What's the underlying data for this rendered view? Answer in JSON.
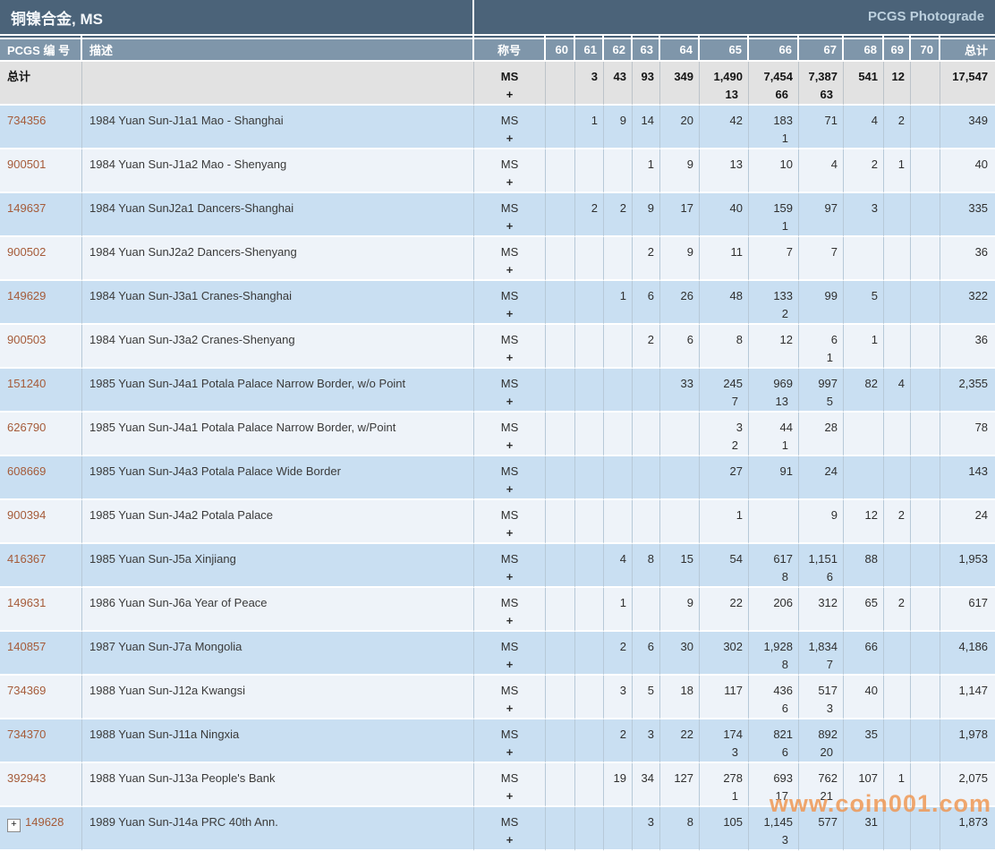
{
  "title_bar": {
    "title": "铜镍合金, MS",
    "photograde_link": "PCGS Photograde"
  },
  "table": {
    "headers": {
      "pcgs_no": "PCGS 编 号",
      "description": "描述",
      "designation": "称号",
      "grades": [
        "60",
        "61",
        "62",
        "63",
        "64",
        "65",
        "66",
        "67",
        "68",
        "69",
        "70"
      ],
      "total": "总计"
    },
    "designation": {
      "top": "MS",
      "bottom": "+"
    },
    "totals_row": {
      "label": "总计",
      "grades": [
        [
          "",
          ""
        ],
        [
          "3",
          ""
        ],
        [
          "43",
          ""
        ],
        [
          "93",
          ""
        ],
        [
          "349",
          ""
        ],
        [
          "1,490",
          "13"
        ],
        [
          "7,454",
          "66"
        ],
        [
          "7,387",
          "63"
        ],
        [
          "541",
          ""
        ],
        [
          "12",
          ""
        ],
        [
          "",
          ""
        ]
      ],
      "total": "17,547"
    },
    "rows": [
      {
        "pcgs_no": "734356",
        "expandable": false,
        "description": "1984 Yuan Sun-J1a1 Mao - Shanghai",
        "grades": [
          [
            "",
            ""
          ],
          [
            "1",
            ""
          ],
          [
            "9",
            ""
          ],
          [
            "14",
            ""
          ],
          [
            "20",
            ""
          ],
          [
            "42",
            ""
          ],
          [
            "183",
            "1"
          ],
          [
            "71",
            ""
          ],
          [
            "4",
            ""
          ],
          [
            "2",
            ""
          ],
          [
            "",
            ""
          ]
        ],
        "total": "349"
      },
      {
        "pcgs_no": "900501",
        "expandable": false,
        "description": "1984 Yuan Sun-J1a2 Mao - Shenyang",
        "grades": [
          [
            "",
            ""
          ],
          [
            "",
            ""
          ],
          [
            "",
            ""
          ],
          [
            "1",
            ""
          ],
          [
            "9",
            ""
          ],
          [
            "13",
            ""
          ],
          [
            "10",
            ""
          ],
          [
            "4",
            ""
          ],
          [
            "2",
            ""
          ],
          [
            "1",
            ""
          ],
          [
            "",
            ""
          ]
        ],
        "total": "40"
      },
      {
        "pcgs_no": "149637",
        "expandable": false,
        "description": "1984 Yuan SunJ2a1 Dancers-Shanghai",
        "grades": [
          [
            "",
            ""
          ],
          [
            "2",
            ""
          ],
          [
            "2",
            ""
          ],
          [
            "9",
            ""
          ],
          [
            "17",
            ""
          ],
          [
            "40",
            ""
          ],
          [
            "159",
            "1"
          ],
          [
            "97",
            ""
          ],
          [
            "3",
            ""
          ],
          [
            "",
            ""
          ],
          [
            "",
            ""
          ]
        ],
        "total": "335"
      },
      {
        "pcgs_no": "900502",
        "expandable": false,
        "description": "1984 Yuan SunJ2a2 Dancers-Shenyang",
        "grades": [
          [
            "",
            ""
          ],
          [
            "",
            ""
          ],
          [
            "",
            ""
          ],
          [
            "2",
            ""
          ],
          [
            "9",
            ""
          ],
          [
            "11",
            ""
          ],
          [
            "7",
            ""
          ],
          [
            "7",
            ""
          ],
          [
            "",
            ""
          ],
          [
            "",
            ""
          ],
          [
            "",
            ""
          ]
        ],
        "total": "36"
      },
      {
        "pcgs_no": "149629",
        "expandable": false,
        "description": "1984 Yuan Sun-J3a1 Cranes-Shanghai",
        "grades": [
          [
            "",
            ""
          ],
          [
            "",
            ""
          ],
          [
            "1",
            ""
          ],
          [
            "6",
            ""
          ],
          [
            "26",
            ""
          ],
          [
            "48",
            ""
          ],
          [
            "133",
            "2"
          ],
          [
            "99",
            ""
          ],
          [
            "5",
            ""
          ],
          [
            "",
            ""
          ],
          [
            "",
            ""
          ]
        ],
        "total": "322"
      },
      {
        "pcgs_no": "900503",
        "expandable": false,
        "description": "1984 Yuan Sun-J3a2 Cranes-Shenyang",
        "grades": [
          [
            "",
            ""
          ],
          [
            "",
            ""
          ],
          [
            "",
            ""
          ],
          [
            "2",
            ""
          ],
          [
            "6",
            ""
          ],
          [
            "8",
            ""
          ],
          [
            "12",
            ""
          ],
          [
            "6",
            "1"
          ],
          [
            "1",
            ""
          ],
          [
            "",
            ""
          ],
          [
            "",
            ""
          ]
        ],
        "total": "36"
      },
      {
        "pcgs_no": "151240",
        "expandable": false,
        "description": "1985 Yuan Sun-J4a1 Potala Palace Narrow Border, w/o Point",
        "grades": [
          [
            "",
            ""
          ],
          [
            "",
            ""
          ],
          [
            "",
            ""
          ],
          [
            "",
            ""
          ],
          [
            "33",
            ""
          ],
          [
            "245",
            "7"
          ],
          [
            "969",
            "13"
          ],
          [
            "997",
            "5"
          ],
          [
            "82",
            ""
          ],
          [
            "4",
            ""
          ],
          [
            "",
            ""
          ]
        ],
        "total": "2,355"
      },
      {
        "pcgs_no": "626790",
        "expandable": false,
        "description": "1985 Yuan Sun-J4a1 Potala Palace Narrow Border, w/Point",
        "grades": [
          [
            "",
            ""
          ],
          [
            "",
            ""
          ],
          [
            "",
            ""
          ],
          [
            "",
            ""
          ],
          [
            "",
            ""
          ],
          [
            "3",
            "2"
          ],
          [
            "44",
            "1"
          ],
          [
            "28",
            ""
          ],
          [
            "",
            ""
          ],
          [
            "",
            ""
          ],
          [
            "",
            ""
          ]
        ],
        "total": "78"
      },
      {
        "pcgs_no": "608669",
        "expandable": false,
        "description": "1985 Yuan Sun-J4a3 Potala Palace Wide Border",
        "grades": [
          [
            "",
            ""
          ],
          [
            "",
            ""
          ],
          [
            "",
            ""
          ],
          [
            "",
            ""
          ],
          [
            "",
            ""
          ],
          [
            "27",
            ""
          ],
          [
            "91",
            ""
          ],
          [
            "24",
            ""
          ],
          [
            "",
            ""
          ],
          [
            "",
            ""
          ],
          [
            "",
            ""
          ]
        ],
        "total": "143"
      },
      {
        "pcgs_no": "900394",
        "expandable": false,
        "description": "1985 Yuan Sun-J4a2 Potala Palace",
        "grades": [
          [
            "",
            ""
          ],
          [
            "",
            ""
          ],
          [
            "",
            ""
          ],
          [
            "",
            ""
          ],
          [
            "",
            ""
          ],
          [
            "1",
            ""
          ],
          [
            "",
            ""
          ],
          [
            "9",
            ""
          ],
          [
            "12",
            ""
          ],
          [
            "2",
            ""
          ],
          [
            "",
            ""
          ]
        ],
        "total": "24"
      },
      {
        "pcgs_no": "416367",
        "expandable": false,
        "description": "1985 Yuan Sun-J5a Xinjiang",
        "grades": [
          [
            "",
            ""
          ],
          [
            "",
            ""
          ],
          [
            "4",
            ""
          ],
          [
            "8",
            ""
          ],
          [
            "15",
            ""
          ],
          [
            "54",
            ""
          ],
          [
            "617",
            "8"
          ],
          [
            "1,151",
            "6"
          ],
          [
            "88",
            ""
          ],
          [
            "",
            ""
          ],
          [
            "",
            ""
          ]
        ],
        "total": "1,953"
      },
      {
        "pcgs_no": "149631",
        "expandable": false,
        "description": "1986 Yuan Sun-J6a Year of Peace",
        "grades": [
          [
            "",
            ""
          ],
          [
            "",
            ""
          ],
          [
            "1",
            ""
          ],
          [
            "",
            ""
          ],
          [
            "9",
            ""
          ],
          [
            "22",
            ""
          ],
          [
            "206",
            ""
          ],
          [
            "312",
            ""
          ],
          [
            "65",
            ""
          ],
          [
            "2",
            ""
          ],
          [
            "",
            ""
          ]
        ],
        "total": "617"
      },
      {
        "pcgs_no": "140857",
        "expandable": false,
        "description": "1987 Yuan Sun-J7a Mongolia",
        "grades": [
          [
            "",
            ""
          ],
          [
            "",
            ""
          ],
          [
            "2",
            ""
          ],
          [
            "6",
            ""
          ],
          [
            "30",
            ""
          ],
          [
            "302",
            ""
          ],
          [
            "1,928",
            "8"
          ],
          [
            "1,834",
            "7"
          ],
          [
            "66",
            ""
          ],
          [
            "",
            ""
          ],
          [
            "",
            ""
          ]
        ],
        "total": "4,186"
      },
      {
        "pcgs_no": "734369",
        "expandable": false,
        "description": "1988 Yuan Sun-J12a Kwangsi",
        "grades": [
          [
            "",
            ""
          ],
          [
            "",
            ""
          ],
          [
            "3",
            ""
          ],
          [
            "5",
            ""
          ],
          [
            "18",
            ""
          ],
          [
            "117",
            ""
          ],
          [
            "436",
            "6"
          ],
          [
            "517",
            "3"
          ],
          [
            "40",
            ""
          ],
          [
            "",
            ""
          ],
          [
            "",
            ""
          ]
        ],
        "total": "1,147"
      },
      {
        "pcgs_no": "734370",
        "expandable": false,
        "description": "1988 Yuan Sun-J11a Ningxia",
        "grades": [
          [
            "",
            ""
          ],
          [
            "",
            ""
          ],
          [
            "2",
            ""
          ],
          [
            "3",
            ""
          ],
          [
            "22",
            ""
          ],
          [
            "174",
            "3"
          ],
          [
            "821",
            "6"
          ],
          [
            "892",
            "20"
          ],
          [
            "35",
            ""
          ],
          [
            "",
            ""
          ],
          [
            "",
            ""
          ]
        ],
        "total": "1,978"
      },
      {
        "pcgs_no": "392943",
        "expandable": false,
        "description": "1988 Yuan Sun-J13a People's Bank",
        "grades": [
          [
            "",
            ""
          ],
          [
            "",
            ""
          ],
          [
            "19",
            ""
          ],
          [
            "34",
            ""
          ],
          [
            "127",
            ""
          ],
          [
            "278",
            "1"
          ],
          [
            "693",
            "17"
          ],
          [
            "762",
            "21"
          ],
          [
            "107",
            ""
          ],
          [
            "1",
            ""
          ],
          [
            "",
            ""
          ]
        ],
        "total": "2,075"
      },
      {
        "pcgs_no": "149628",
        "expandable": true,
        "description": "1989 Yuan Sun-J14a PRC 40th Ann.",
        "grades": [
          [
            "",
            ""
          ],
          [
            "",
            ""
          ],
          [
            "",
            ""
          ],
          [
            "3",
            ""
          ],
          [
            "8",
            ""
          ],
          [
            "105",
            ""
          ],
          [
            "1,145",
            "3"
          ],
          [
            "577",
            ""
          ],
          [
            "31",
            ""
          ],
          [
            "",
            ""
          ],
          [
            "",
            ""
          ]
        ],
        "total": "1,873"
      }
    ],
    "expand_icon_glyph": "+"
  },
  "watermark": "www.coin001.com",
  "colors": {
    "title_bar": "#4b6379",
    "header_bg": "#7f96aa",
    "totals_bg": "#e2e2e2",
    "row_blue": "#c9dff2",
    "row_light": "#eef3f9",
    "grid_line": "#b7c9d8",
    "separator": "#ffffff",
    "pcgs_number": "#a55b39",
    "photograde_link": "#bcd0de",
    "watermark": "#ee9855"
  }
}
